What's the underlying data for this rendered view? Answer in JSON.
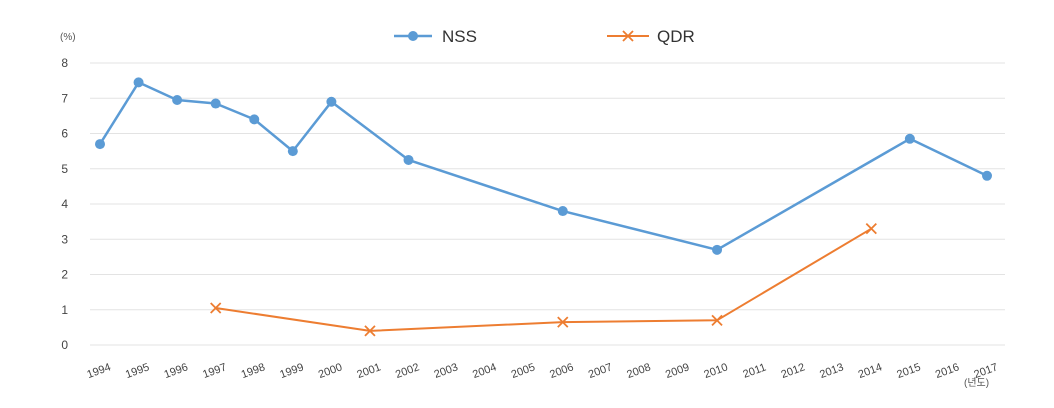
{
  "chart_data": {
    "type": "line",
    "y_unit_label": "(%)",
    "x_unit_label": "(년도)",
    "x": [
      "1994",
      "1995",
      "1996",
      "1997",
      "1998",
      "1999",
      "2000",
      "2001",
      "2002",
      "2003",
      "2004",
      "2005",
      "2006",
      "2007",
      "2008",
      "2009",
      "2010",
      "2011",
      "2012",
      "2013",
      "2014",
      "2015",
      "2016",
      "2017"
    ],
    "ylim": [
      0,
      8
    ],
    "yticks": [
      0,
      1,
      2,
      3,
      4,
      5,
      6,
      7,
      8
    ],
    "grid": true,
    "legend_position": "top-center",
    "series": [
      {
        "name": "NSS",
        "color": "#5b9bd5",
        "marker": "circle",
        "points": [
          {
            "x": "1994",
            "y": 5.7
          },
          {
            "x": "1995",
            "y": 7.45
          },
          {
            "x": "1996",
            "y": 6.95
          },
          {
            "x": "1997",
            "y": 6.85
          },
          {
            "x": "1998",
            "y": 6.4
          },
          {
            "x": "1999",
            "y": 5.5
          },
          {
            "x": "2000",
            "y": 6.9
          },
          {
            "x": "2002",
            "y": 5.25
          },
          {
            "x": "2006",
            "y": 3.8
          },
          {
            "x": "2010",
            "y": 2.7
          },
          {
            "x": "2015",
            "y": 5.85
          },
          {
            "x": "2017",
            "y": 4.8
          }
        ]
      },
      {
        "name": "QDR",
        "color": "#ed7d31",
        "marker": "x",
        "points": [
          {
            "x": "1997",
            "y": 1.05
          },
          {
            "x": "2001",
            "y": 0.4
          },
          {
            "x": "2006",
            "y": 0.65
          },
          {
            "x": "2010",
            "y": 0.7
          },
          {
            "x": "2014",
            "y": 3.3
          }
        ]
      }
    ]
  }
}
